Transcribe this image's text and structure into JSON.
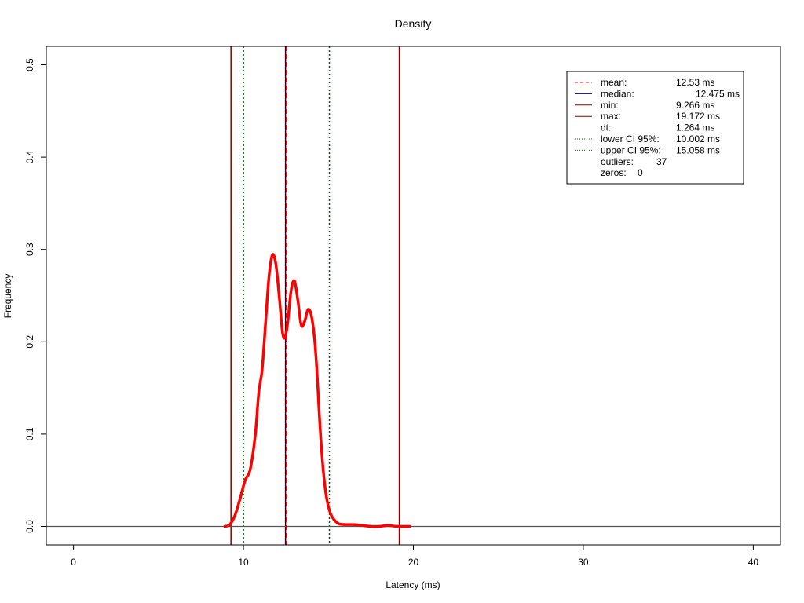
{
  "chart_data": {
    "type": "line",
    "title": "Density",
    "xlabel": "Latency (ms)",
    "ylabel": "Frequency",
    "xlim": [
      -1.6,
      41.6
    ],
    "ylim": [
      -0.02,
      0.52
    ],
    "xticks": [
      0,
      10,
      20,
      30,
      40
    ],
    "yticks": [
      0.0,
      0.1,
      0.2,
      0.3,
      0.4,
      0.5
    ],
    "xtick_labels": [
      "0",
      "10",
      "20",
      "30",
      "40"
    ],
    "ytick_labels": [
      "0.0",
      "0.1",
      "0.2",
      "0.3",
      "0.4",
      "0.5"
    ],
    "grid": false,
    "legend_position": "top-right",
    "series": [
      {
        "color": "#ff0000",
        "style": "solid",
        "x": [
          8.9,
          9.2,
          9.5,
          9.8,
          10.1,
          10.4,
          10.7,
          10.9,
          11.1,
          11.3,
          11.5,
          11.7,
          11.9,
          12.1,
          12.3,
          12.45,
          12.6,
          12.8,
          13.0,
          13.2,
          13.4,
          13.6,
          13.8,
          14.0,
          14.2,
          14.35,
          14.5,
          14.7,
          14.9,
          15.1,
          15.3,
          15.6,
          16.0,
          16.5,
          17.0,
          17.5,
          18.0,
          18.5,
          19.0,
          19.4,
          19.8
        ],
        "y": [
          0.0,
          0.002,
          0.012,
          0.03,
          0.05,
          0.062,
          0.1,
          0.145,
          0.17,
          0.22,
          0.27,
          0.294,
          0.285,
          0.25,
          0.21,
          0.205,
          0.22,
          0.255,
          0.266,
          0.245,
          0.218,
          0.222,
          0.235,
          0.228,
          0.2,
          0.16,
          0.11,
          0.06,
          0.03,
          0.015,
          0.008,
          0.003,
          0.002,
          0.002,
          0.001,
          0.0,
          0.0,
          0.001,
          0.0,
          0.0,
          0.0
        ]
      }
    ],
    "reference_lines": [
      {
        "axis": "x",
        "value": 12.53,
        "color": "#ff0000",
        "style": "dashed",
        "label": "mean"
      },
      {
        "axis": "x",
        "value": 12.475,
        "color": "#00008b",
        "style": "solid",
        "label": "median"
      },
      {
        "axis": "x",
        "value": 9.266,
        "color": "#8b0000",
        "style": "solid",
        "label": "min"
      },
      {
        "axis": "x",
        "value": 19.172,
        "color": "#8b0000",
        "style": "solid",
        "label": "max"
      },
      {
        "axis": "x",
        "value": 10.002,
        "color": "#006400",
        "style": "dotted",
        "label": "lower CI 95%"
      },
      {
        "axis": "x",
        "value": 15.058,
        "color": "#006400",
        "style": "dotted",
        "label": "upper CI 95%"
      },
      {
        "axis": "y",
        "value": 0.0,
        "color": "#555555",
        "style": "solid",
        "label": ""
      }
    ],
    "legend": [
      {
        "key": "mean:",
        "value": "12.53 ms",
        "color": "#ff0000",
        "style": "dashed"
      },
      {
        "key": "median:",
        "value": "12.475 ms",
        "color": "#00008b",
        "style": "solid"
      },
      {
        "key": "min:",
        "value": "9.266 ms",
        "color": "#8b0000",
        "style": "solid"
      },
      {
        "key": "max:",
        "value": "19.172 ms",
        "color": "#8b0000",
        "style": "solid"
      },
      {
        "key": "dt:",
        "value": "1.264 ms",
        "color": "",
        "style": "none"
      },
      {
        "key": "lower CI 95%:",
        "value": "10.002 ms",
        "color": "#006400",
        "style": "dotted"
      },
      {
        "key": "upper CI 95%:",
        "value": "15.058 ms",
        "color": "#006400",
        "style": "dotted"
      },
      {
        "key": "outliers:",
        "value": "37",
        "color": "",
        "style": "none"
      },
      {
        "key": "zeros:",
        "value": "0",
        "color": "",
        "style": "none"
      }
    ]
  }
}
